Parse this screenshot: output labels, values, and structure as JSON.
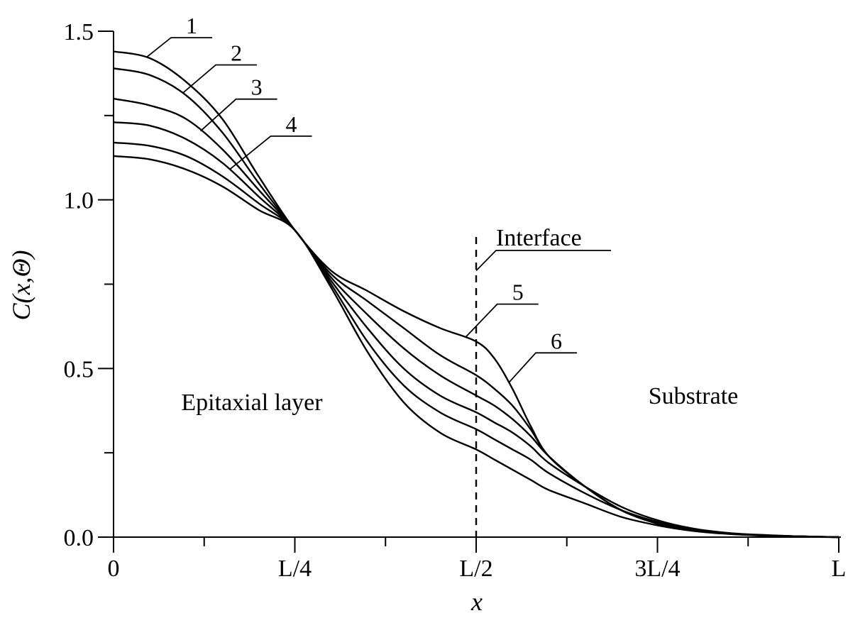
{
  "chart_data": {
    "type": "line",
    "xlabel": "x",
    "ylabel": "C(x,Θ)",
    "xlim": [
      0,
      1
    ],
    "ylim": [
      0,
      1.5
    ],
    "x_ticks": [
      {
        "value": 0,
        "label": "0"
      },
      {
        "value": 0.25,
        "label": "L/4"
      },
      {
        "value": 0.5,
        "label": "L/2"
      },
      {
        "value": 0.75,
        "label": "3L/4"
      },
      {
        "value": 1,
        "label": "L"
      }
    ],
    "y_ticks": [
      {
        "value": 0,
        "label": "0.0"
      },
      {
        "value": 0.5,
        "label": "0.5"
      },
      {
        "value": 1.0,
        "label": "1.0"
      },
      {
        "value": 1.5,
        "label": "1.5"
      }
    ],
    "x": [
      0,
      0.05,
      0.1,
      0.15,
      0.2,
      0.25,
      0.3,
      0.35,
      0.4,
      0.45,
      0.5,
      0.525,
      0.55,
      0.575,
      0.6,
      0.65,
      0.7,
      0.75,
      0.8,
      0.85,
      0.9,
      0.95,
      1.0
    ],
    "series": [
      {
        "label": "1",
        "values": [
          1.44,
          1.42,
          1.35,
          1.24,
          1.07,
          0.91,
          0.79,
          0.73,
          0.67,
          0.62,
          0.58,
          0.53,
          0.44,
          0.33,
          0.24,
          0.15,
          0.08,
          0.04,
          0.02,
          0.01,
          0.005,
          0.002,
          0.0
        ]
      },
      {
        "label": "2",
        "values": [
          1.39,
          1.37,
          1.31,
          1.2,
          1.05,
          0.91,
          0.78,
          0.7,
          0.62,
          0.54,
          0.48,
          0.44,
          0.39,
          0.32,
          0.24,
          0.15,
          0.08,
          0.04,
          0.02,
          0.01,
          0.005,
          0.002,
          0.0
        ]
      },
      {
        "label": "3",
        "values": [
          1.3,
          1.28,
          1.24,
          1.15,
          1.03,
          0.91,
          0.77,
          0.66,
          0.56,
          0.48,
          0.42,
          0.39,
          0.35,
          0.3,
          0.24,
          0.15,
          0.08,
          0.04,
          0.02,
          0.01,
          0.005,
          0.002,
          0.0
        ]
      },
      {
        "label": "4",
        "values": [
          1.23,
          1.22,
          1.18,
          1.11,
          1.01,
          0.91,
          0.76,
          0.62,
          0.5,
          0.42,
          0.37,
          0.34,
          0.31,
          0.27,
          0.22,
          0.15,
          0.09,
          0.05,
          0.025,
          0.012,
          0.006,
          0.002,
          0.0
        ]
      },
      {
        "label": "5",
        "values": [
          1.17,
          1.16,
          1.13,
          1.07,
          0.99,
          0.91,
          0.75,
          0.58,
          0.45,
          0.37,
          0.32,
          0.29,
          0.26,
          0.23,
          0.19,
          0.13,
          0.08,
          0.045,
          0.022,
          0.011,
          0.005,
          0.002,
          0.0
        ]
      },
      {
        "label": "6",
        "values": [
          1.13,
          1.12,
          1.09,
          1.04,
          0.97,
          0.91,
          0.74,
          0.55,
          0.4,
          0.31,
          0.26,
          0.23,
          0.2,
          0.17,
          0.14,
          0.1,
          0.06,
          0.035,
          0.018,
          0.009,
          0.004,
          0.001,
          0.0
        ]
      }
    ],
    "interface_x": 0.5,
    "annotations": {
      "interface": "Interface",
      "left_region": "Epitaxial layer",
      "right_region": "Substrate"
    },
    "grid": false,
    "legend": "inline leader labels"
  }
}
